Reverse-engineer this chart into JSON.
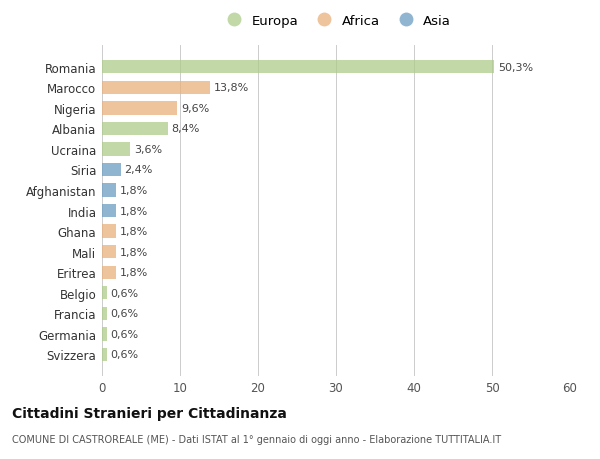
{
  "categories": [
    "Romania",
    "Marocco",
    "Nigeria",
    "Albania",
    "Ucraina",
    "Siria",
    "Afghanistan",
    "India",
    "Ghana",
    "Mali",
    "Eritrea",
    "Belgio",
    "Francia",
    "Germania",
    "Svizzera"
  ],
  "values": [
    50.3,
    13.8,
    9.6,
    8.4,
    3.6,
    2.4,
    1.8,
    1.8,
    1.8,
    1.8,
    1.8,
    0.6,
    0.6,
    0.6,
    0.6
  ],
  "labels": [
    "50,3%",
    "13,8%",
    "9,6%",
    "8,4%",
    "3,6%",
    "2,4%",
    "1,8%",
    "1,8%",
    "1,8%",
    "1,8%",
    "1,8%",
    "0,6%",
    "0,6%",
    "0,6%",
    "0,6%"
  ],
  "continent": [
    "Europa",
    "Africa",
    "Africa",
    "Europa",
    "Europa",
    "Asia",
    "Asia",
    "Asia",
    "Africa",
    "Africa",
    "Africa",
    "Europa",
    "Europa",
    "Europa",
    "Europa"
  ],
  "colors": {
    "Europa": "#AECB8A",
    "Africa": "#E8B07A",
    "Asia": "#6B9DC2"
  },
  "legend_order": [
    "Europa",
    "Africa",
    "Asia"
  ],
  "title": "Cittadini Stranieri per Cittadinanza",
  "subtitle": "COMUNE DI CASTROREALE (ME) - Dati ISTAT al 1° gennaio di oggi anno - Elaborazione TUTTITALIA.IT",
  "xlim": [
    0,
    60
  ],
  "xticks": [
    0,
    10,
    20,
    30,
    40,
    50,
    60
  ],
  "background_color": "#ffffff",
  "bar_alpha": 0.75
}
